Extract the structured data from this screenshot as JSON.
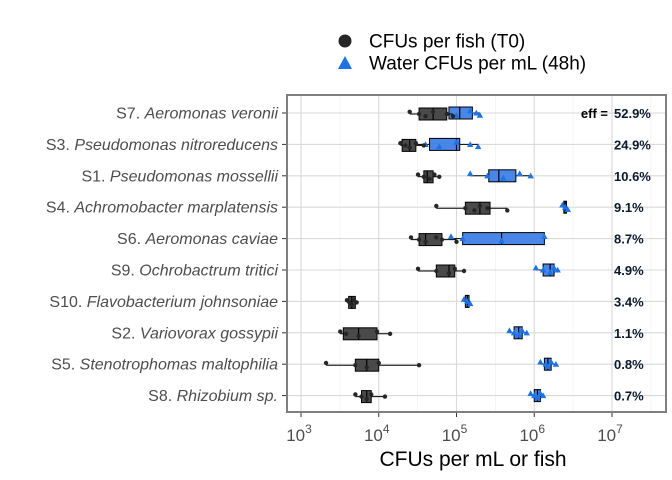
{
  "chart_data": {
    "type": "boxplot",
    "xlabel": "CFUs per mL or fish",
    "x_scale": "log10",
    "xlim": [
      700,
      50000000
    ],
    "x_ticks": [
      {
        "value": 1000,
        "base": "10",
        "exp": "3"
      },
      {
        "value": 10000,
        "base": "10",
        "exp": "4"
      },
      {
        "value": 100000,
        "base": "10",
        "exp": "5"
      },
      {
        "value": 1000000,
        "base": "10",
        "exp": "6"
      },
      {
        "value": 10000000,
        "base": "10",
        "exp": "7"
      }
    ],
    "grid": true,
    "legend_position": "top",
    "legend": [
      {
        "label": "CFUs per fish (T0)",
        "shape": "circle",
        "color": "#262626"
      },
      {
        "label": "Water CFUs per mL (48h)",
        "shape": "triangle",
        "color": "#1a73e8"
      }
    ],
    "colors": {
      "fish_box": "#4a4a4a",
      "water_box": "#4a86e8",
      "fish_point": "#262626",
      "water_point": "#1a73e8",
      "panel_border": "#7f7f7f",
      "grid": "#d9d9d9"
    },
    "eff_prefix": "eff =",
    "categories": [
      {
        "code": "S7.",
        "species": "Aeromonas veronii",
        "eff": "52.9%",
        "fish": {
          "whisker": [
            25000,
            90000
          ],
          "box": [
            33000,
            75000
          ],
          "median": 50000,
          "points": [
            25000,
            33000,
            40000,
            50000,
            75000,
            90000
          ]
        },
        "water": {
          "whisker": [
            58000,
            200000
          ],
          "box": [
            80000,
            160000
          ],
          "median": 110000,
          "points": [
            58000,
            70000,
            100000,
            150000,
            180000,
            200000
          ]
        }
      },
      {
        "code": "S3.",
        "species": "Pseudomonas nitroreducens",
        "eff": "24.9%",
        "fish": {
          "whisker": [
            19000,
            38000
          ],
          "box": [
            20000,
            30000
          ],
          "median": 25000,
          "points": [
            19000,
            22000,
            25000,
            30000,
            38000
          ]
        },
        "water": {
          "whisker": [
            20000,
            190000
          ],
          "box": [
            45000,
            110000
          ],
          "median": 100000,
          "points": [
            20000,
            40000,
            60000,
            100000,
            150000,
            190000
          ]
        }
      },
      {
        "code": "S1.",
        "species": "Pseudomonas mossellii",
        "eff": "10.6%",
        "fish": {
          "whisker": [
            32000,
            60000
          ],
          "box": [
            38000,
            50000
          ],
          "median": 42000,
          "points": [
            32000,
            38000,
            45000,
            52000,
            60000
          ]
        },
        "water": {
          "whisker": [
            150000,
            900000
          ],
          "box": [
            260000,
            580000
          ],
          "median": 350000,
          "points": [
            150000,
            250000,
            400000,
            650000,
            900000
          ]
        }
      },
      {
        "code": "S4.",
        "species": "Achromobacter marplatensis",
        "eff": "9.1%",
        "fish": {
          "whisker": [
            55000,
            450000
          ],
          "box": [
            130000,
            270000
          ],
          "median": 200000,
          "points": [
            55000,
            130000,
            170000,
            200000,
            250000,
            450000
          ]
        },
        "water": {
          "whisker": [
            2300000,
            2700000
          ],
          "box": [
            2400000,
            2600000
          ],
          "median": 2500000,
          "points": [
            2300000,
            2500000,
            2700000
          ]
        }
      },
      {
        "code": "S6.",
        "species": "Aeromonas caviae",
        "eff": "8.7%",
        "fish": {
          "whisker": [
            26000,
            100000
          ],
          "box": [
            33000,
            65000
          ],
          "median": 40000,
          "points": [
            26000,
            33000,
            40000,
            55000,
            65000,
            100000
          ]
        },
        "water": {
          "whisker": [
            85000,
            1400000
          ],
          "box": [
            120000,
            1350000
          ],
          "median": 380000,
          "points": [
            85000,
            120000,
            380000,
            1350000
          ]
        }
      },
      {
        "code": "S9.",
        "species": "Ochrobactrum tritici",
        "eff": "4.9%",
        "fish": {
          "whisker": [
            32000,
            125000
          ],
          "box": [
            55000,
            95000
          ],
          "median": 80000,
          "points": [
            32000,
            55000,
            80000,
            95000,
            125000
          ]
        },
        "water": {
          "whisker": [
            1050000,
            2000000
          ],
          "box": [
            1300000,
            1800000
          ],
          "median": 1600000,
          "points": [
            1050000,
            1300000,
            1600000,
            1800000,
            2000000
          ]
        }
      },
      {
        "code": "S10.",
        "species": "Flavobacterium johnsoniae",
        "eff": "3.4%",
        "fish": {
          "whisker": [
            3900,
            5200
          ],
          "box": [
            4100,
            5000
          ],
          "median": 4500,
          "points": [
            3900,
            4200,
            4500,
            4800,
            5200
          ]
        },
        "water": {
          "whisker": [
            125000,
            150000
          ],
          "box": [
            130000,
            145000
          ],
          "median": 138000,
          "points": [
            125000,
            138000,
            150000
          ]
        }
      },
      {
        "code": "S2.",
        "species": "Variovorax gossypii",
        "eff": "1.1%",
        "fish": {
          "whisker": [
            3200,
            14000
          ],
          "box": [
            3500,
            9500
          ],
          "median": 5500,
          "points": [
            3200,
            3800,
            5500,
            9500,
            14000
          ]
        },
        "water": {
          "whisker": [
            480000,
            800000
          ],
          "box": [
            550000,
            700000
          ],
          "median": 630000,
          "points": [
            480000,
            550000,
            630000,
            700000,
            800000
          ]
        }
      },
      {
        "code": "S5.",
        "species": "Stenotrophomas maltophilia",
        "eff": "0.8%",
        "fish": {
          "whisker": [
            2100,
            33000
          ],
          "box": [
            5000,
            10000
          ],
          "median": 7000,
          "points": [
            2100,
            5000,
            7000,
            10000,
            33000
          ]
        },
        "water": {
          "whisker": [
            1200000,
            1900000
          ],
          "box": [
            1350000,
            1650000
          ],
          "median": 1500000,
          "points": [
            1200000,
            1400000,
            1500000,
            1650000,
            1900000
          ]
        }
      },
      {
        "code": "S8.",
        "species": "Rhizobium sp.",
        "eff": "0.7%",
        "fish": {
          "whisker": [
            5000,
            12000
          ],
          "box": [
            6000,
            8000
          ],
          "median": 7000,
          "points": [
            5000,
            6000,
            7000,
            8000,
            12000
          ]
        },
        "water": {
          "whisker": [
            900000,
            1300000
          ],
          "box": [
            1000000,
            1200000
          ],
          "median": 1100000,
          "points": [
            900000,
            1000000,
            1100000,
            1200000,
            1300000
          ]
        }
      }
    ]
  }
}
